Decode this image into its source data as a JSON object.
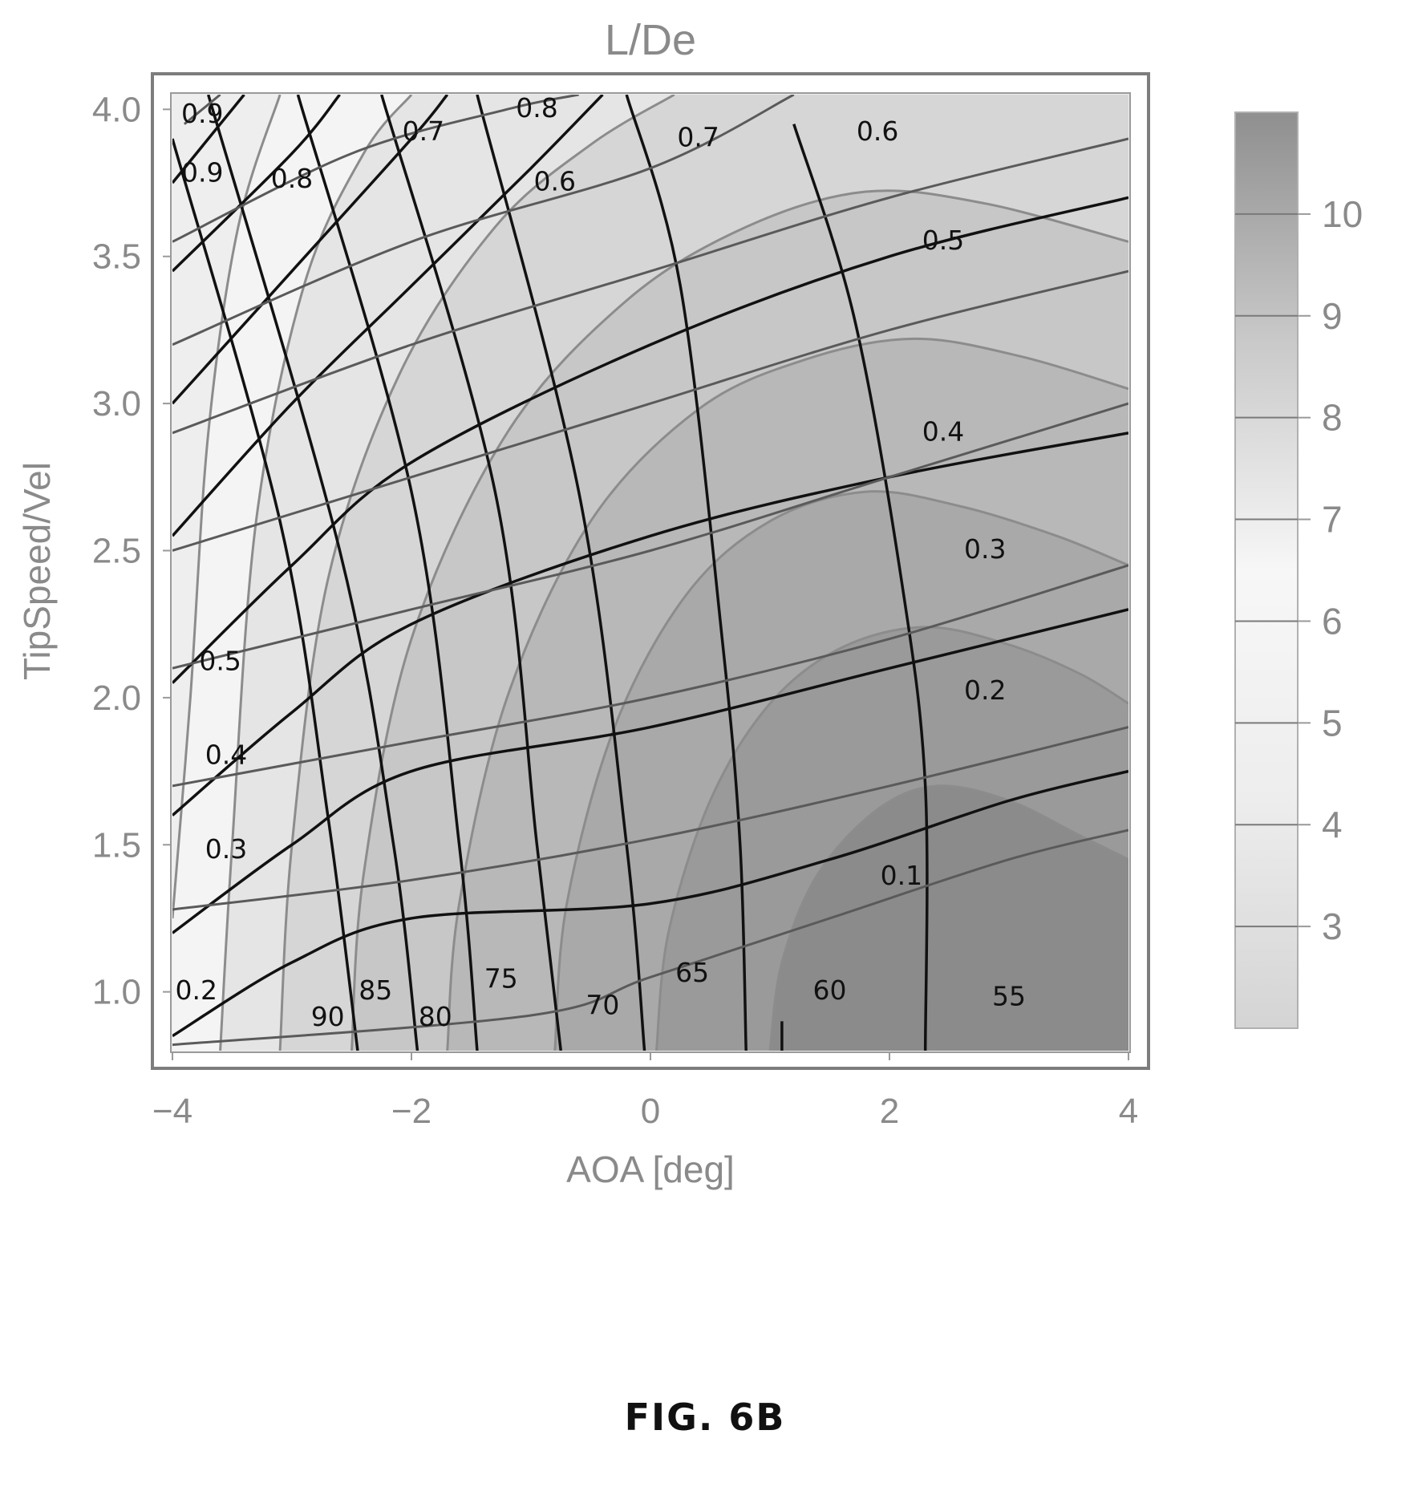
{
  "chart_data": {
    "type": "contour",
    "title": "L/De",
    "xlabel": "AOA [deg]",
    "ylabel": "TipSpeed/Vel",
    "xlim": [
      -4,
      4
    ],
    "ylim": [
      0.8,
      4.05
    ],
    "x_ticks": [
      "-4",
      "-2",
      "0",
      "2",
      "4"
    ],
    "y_ticks": [
      "1.0",
      "1.5",
      "2.0",
      "2.5",
      "3.0",
      "3.5",
      "4.0"
    ],
    "filled_contour": {
      "quantity": "L/De",
      "peak": {
        "x": 2.3,
        "y": 1.15
      },
      "colorbar_ticks": [
        "3",
        "4",
        "5",
        "6",
        "7",
        "8",
        "9",
        "10"
      ],
      "levels": [
        2,
        3,
        4,
        5,
        6,
        7,
        8,
        9,
        10,
        11
      ],
      "boundaries": [
        {
          "level": 10,
          "points": [
            [
              1.0,
              0.8
            ],
            [
              1.1,
              1.1
            ],
            [
              1.4,
              1.4
            ],
            [
              1.9,
              1.62
            ],
            [
              2.4,
              1.7
            ],
            [
              3.0,
              1.65
            ],
            [
              3.6,
              1.53
            ],
            [
              4.0,
              1.45
            ]
          ]
        },
        {
          "level": 9,
          "points": [
            [
              0.05,
              0.8
            ],
            [
              0.15,
              1.2
            ],
            [
              0.5,
              1.65
            ],
            [
              1.0,
              1.98
            ],
            [
              1.6,
              2.17
            ],
            [
              2.3,
              2.24
            ],
            [
              3.0,
              2.18
            ],
            [
              3.6,
              2.08
            ],
            [
              4.0,
              1.98
            ]
          ]
        },
        {
          "level": 8,
          "points": [
            [
              -0.8,
              0.8
            ],
            [
              -0.7,
              1.3
            ],
            [
              -0.3,
              1.9
            ],
            [
              0.3,
              2.35
            ],
            [
              1.0,
              2.6
            ],
            [
              1.8,
              2.7
            ],
            [
              2.6,
              2.65
            ],
            [
              3.4,
              2.55
            ],
            [
              4.0,
              2.45
            ]
          ]
        },
        {
          "level": 7,
          "points": [
            [
              -1.7,
              0.8
            ],
            [
              -1.6,
              1.3
            ],
            [
              -1.2,
              2.0
            ],
            [
              -0.5,
              2.6
            ],
            [
              0.4,
              2.98
            ],
            [
              1.3,
              3.15
            ],
            [
              2.2,
              3.22
            ],
            [
              3.1,
              3.16
            ],
            [
              4.0,
              3.05
            ]
          ]
        },
        {
          "level": 6,
          "points": [
            [
              -2.5,
              0.8
            ],
            [
              -2.4,
              1.4
            ],
            [
              -2.0,
              2.2
            ],
            [
              -1.2,
              2.9
            ],
            [
              -0.2,
              3.35
            ],
            [
              0.8,
              3.6
            ],
            [
              1.8,
              3.72
            ],
            [
              2.8,
              3.68
            ],
            [
              4.0,
              3.55
            ]
          ]
        },
        {
          "level": 5,
          "points": [
            [
              -3.1,
              0.8
            ],
            [
              -3.0,
              1.5
            ],
            [
              -2.7,
              2.4
            ],
            [
              -2.1,
              3.1
            ],
            [
              -1.3,
              3.6
            ],
            [
              -0.5,
              3.88
            ],
            [
              0.2,
              4.05
            ]
          ]
        },
        {
          "level": 4,
          "points": [
            [
              -3.6,
              0.8
            ],
            [
              -3.5,
              1.5
            ],
            [
              -3.3,
              2.6
            ],
            [
              -2.9,
              3.4
            ],
            [
              -2.4,
              3.85
            ],
            [
              -2.0,
              4.05
            ]
          ]
        },
        {
          "level": 3,
          "points": [
            [
              -4.0,
              1.25
            ],
            [
              -3.85,
              2.0
            ],
            [
              -3.7,
              2.9
            ],
            [
              -3.45,
              3.6
            ],
            [
              -3.1,
              4.05
            ]
          ]
        }
      ]
    },
    "line_contours": [
      {
        "family": "diagonal",
        "label": "90",
        "label_at": [
          -2.7,
          0.91
        ],
        "points": [
          [
            -4.0,
            3.9
          ],
          [
            -3.1,
            2.6
          ],
          [
            -2.7,
            1.6
          ],
          [
            -2.45,
            0.8
          ]
        ]
      },
      {
        "family": "diagonal",
        "label": "85",
        "label_at": [
          -2.3,
          1.0
        ],
        "points": [
          [
            -3.7,
            4.05
          ],
          [
            -2.6,
            2.5
          ],
          [
            -2.15,
            1.5
          ],
          [
            -1.95,
            0.8
          ]
        ]
      },
      {
        "family": "diagonal",
        "label": "80",
        "label_at": [
          -1.8,
          0.91
        ],
        "points": [
          [
            -2.95,
            4.05
          ],
          [
            -2.0,
            2.7
          ],
          [
            -1.6,
            1.5
          ],
          [
            -1.45,
            0.8
          ]
        ]
      },
      {
        "family": "diagonal",
        "label": "75",
        "label_at": [
          -1.25,
          1.04
        ],
        "points": [
          [
            -2.25,
            4.05
          ],
          [
            -1.3,
            2.7
          ],
          [
            -0.95,
            1.5
          ],
          [
            -0.75,
            0.8
          ]
        ]
      },
      {
        "family": "diagonal",
        "label": "70",
        "label_at": [
          -0.4,
          0.95
        ],
        "points": [
          [
            -1.45,
            4.05
          ],
          [
            -0.6,
            2.7
          ],
          [
            -0.2,
            1.5
          ],
          [
            -0.05,
            0.8
          ]
        ]
      },
      {
        "family": "diagonal",
        "label": "65",
        "label_at": [
          0.35,
          1.06
        ],
        "points": [
          [
            -0.2,
            4.05
          ],
          [
            0.25,
            3.4
          ],
          [
            0.6,
            2.2
          ],
          [
            0.75,
            1.5
          ],
          [
            0.8,
            0.8
          ]
        ]
      },
      {
        "family": "diagonal",
        "label": "60",
        "label_at": [
          1.5,
          1.0
        ],
        "points": [
          [
            1.2,
            3.95
          ],
          [
            1.7,
            3.3
          ],
          [
            2.1,
            2.4
          ],
          [
            2.3,
            1.7
          ],
          [
            2.3,
            0.8
          ]
        ]
      },
      {
        "family": "diagonal",
        "label": "55",
        "label_at": [
          3.0,
          0.98
        ],
        "points": [
          [
            1.1,
            0.8
          ],
          [
            1.1,
            0.9
          ]
        ]
      },
      {
        "family": "rising",
        "label": "0.2",
        "label_at": [
          -3.8,
          1.0
        ],
        "points": [
          [
            -4.0,
            0.85
          ],
          [
            -3.0,
            1.1
          ],
          [
            -2.0,
            1.25
          ],
          [
            0.0,
            1.3
          ],
          [
            1.5,
            1.45
          ],
          [
            3.0,
            1.65
          ],
          [
            4.0,
            1.75
          ]
        ]
      },
      {
        "family": "rising",
        "label": "0.3",
        "label_at": [
          -3.55,
          1.48
        ],
        "points": [
          [
            -4.0,
            1.2
          ],
          [
            -3.0,
            1.5
          ],
          [
            -2.0,
            1.75
          ],
          [
            0.0,
            1.9
          ],
          [
            2.0,
            2.1
          ],
          [
            4.0,
            2.3
          ]
        ]
      },
      {
        "family": "rising",
        "label": "0.4",
        "label_at": [
          -3.55,
          1.8
        ],
        "points": [
          [
            -4.0,
            1.6
          ],
          [
            -3.0,
            1.95
          ],
          [
            -2.0,
            2.25
          ],
          [
            0.0,
            2.55
          ],
          [
            2.0,
            2.75
          ],
          [
            4.0,
            2.9
          ]
        ]
      },
      {
        "family": "rising",
        "label": "0.5",
        "label_at": [
          -3.6,
          2.12
        ],
        "points": [
          [
            -4.0,
            2.05
          ],
          [
            -3.0,
            2.45
          ],
          [
            -2.0,
            2.8
          ],
          [
            0.0,
            3.2
          ],
          [
            2.0,
            3.5
          ],
          [
            4.0,
            3.7
          ]
        ]
      },
      {
        "family": "rising",
        "label": "0.6",
        "label_at": [
          -0.8,
          3.75
        ],
        "points": [
          [
            -4.0,
            2.55
          ],
          [
            -3.0,
            3.0
          ],
          [
            -2.0,
            3.4
          ],
          [
            -1.0,
            3.8
          ],
          [
            -0.4,
            4.05
          ]
        ]
      },
      {
        "family": "rising",
        "label": "0.7",
        "label_at": [
          -1.9,
          3.92
        ],
        "points": [
          [
            -4.0,
            3.0
          ],
          [
            -3.0,
            3.45
          ],
          [
            -2.0,
            3.9
          ],
          [
            -1.7,
            4.05
          ]
        ]
      },
      {
        "family": "rising",
        "label": "0.8",
        "label_at": [
          -3.0,
          3.76
        ],
        "points": [
          [
            -4.0,
            3.45
          ],
          [
            -3.0,
            3.85
          ],
          [
            -2.6,
            4.05
          ]
        ]
      },
      {
        "family": "rising",
        "label": "0.9",
        "label_at": [
          -3.75,
          3.78
        ],
        "points": [
          [
            -4.0,
            3.75
          ],
          [
            -3.4,
            4.05
          ]
        ]
      },
      {
        "family": "curved",
        "label": "0.9",
        "label_at": [
          -3.75,
          3.98
        ],
        "points": [
          [
            -3.9,
            3.95
          ],
          [
            -3.6,
            4.05
          ]
        ]
      },
      {
        "family": "curved",
        "label": "0.8",
        "label_at": [
          -0.95,
          4.0
        ],
        "points": [
          [
            -4.0,
            3.55
          ],
          [
            -2.5,
            3.85
          ],
          [
            -1.2,
            4.0
          ],
          [
            -0.6,
            4.05
          ]
        ]
      },
      {
        "family": "curved",
        "label": "0.7",
        "label_at": [
          0.4,
          3.9
        ],
        "points": [
          [
            -4.0,
            3.2
          ],
          [
            -2.0,
            3.55
          ],
          [
            0.0,
            3.8
          ],
          [
            1.2,
            4.05
          ]
        ]
      },
      {
        "family": "curved",
        "label": "0.6",
        "label_at": [
          1.9,
          3.92
        ],
        "points": [
          [
            -4.0,
            2.9
          ],
          [
            -2.0,
            3.2
          ],
          [
            0.0,
            3.45
          ],
          [
            2.0,
            3.7
          ],
          [
            4.0,
            3.9
          ]
        ]
      },
      {
        "family": "curved",
        "label": "0.5",
        "label_at": [
          2.45,
          3.55
        ],
        "points": [
          [
            -4.0,
            2.5
          ],
          [
            -2.0,
            2.75
          ],
          [
            0.0,
            3.0
          ],
          [
            2.0,
            3.25
          ],
          [
            4.0,
            3.45
          ]
        ]
      },
      {
        "family": "curved",
        "label": "0.4",
        "label_at": [
          2.45,
          2.9
        ],
        "points": [
          [
            -4.0,
            2.1
          ],
          [
            -2.0,
            2.3
          ],
          [
            0.0,
            2.5
          ],
          [
            2.0,
            2.75
          ],
          [
            4.0,
            3.0
          ]
        ]
      },
      {
        "family": "curved",
        "label": "0.3",
        "label_at": [
          2.8,
          2.5
        ],
        "points": [
          [
            -4.0,
            1.7
          ],
          [
            -2.0,
            1.85
          ],
          [
            0.0,
            2.0
          ],
          [
            2.0,
            2.2
          ],
          [
            4.0,
            2.45
          ]
        ]
      },
      {
        "family": "curved",
        "label": "0.2",
        "label_at": [
          2.8,
          2.02
        ],
        "points": [
          [
            -4.0,
            1.28
          ],
          [
            -2.0,
            1.38
          ],
          [
            0.0,
            1.52
          ],
          [
            2.0,
            1.7
          ],
          [
            4.0,
            1.9
          ]
        ]
      },
      {
        "family": "curved",
        "label": "0.1",
        "label_at": [
          2.1,
          1.39
        ],
        "points": [
          [
            -4.0,
            0.82
          ],
          [
            -1.0,
            0.92
          ],
          [
            0.0,
            1.05
          ],
          [
            1.5,
            1.25
          ],
          [
            3.0,
            1.45
          ],
          [
            4.0,
            1.55
          ]
        ]
      }
    ]
  },
  "caption": "FIG. 6B"
}
